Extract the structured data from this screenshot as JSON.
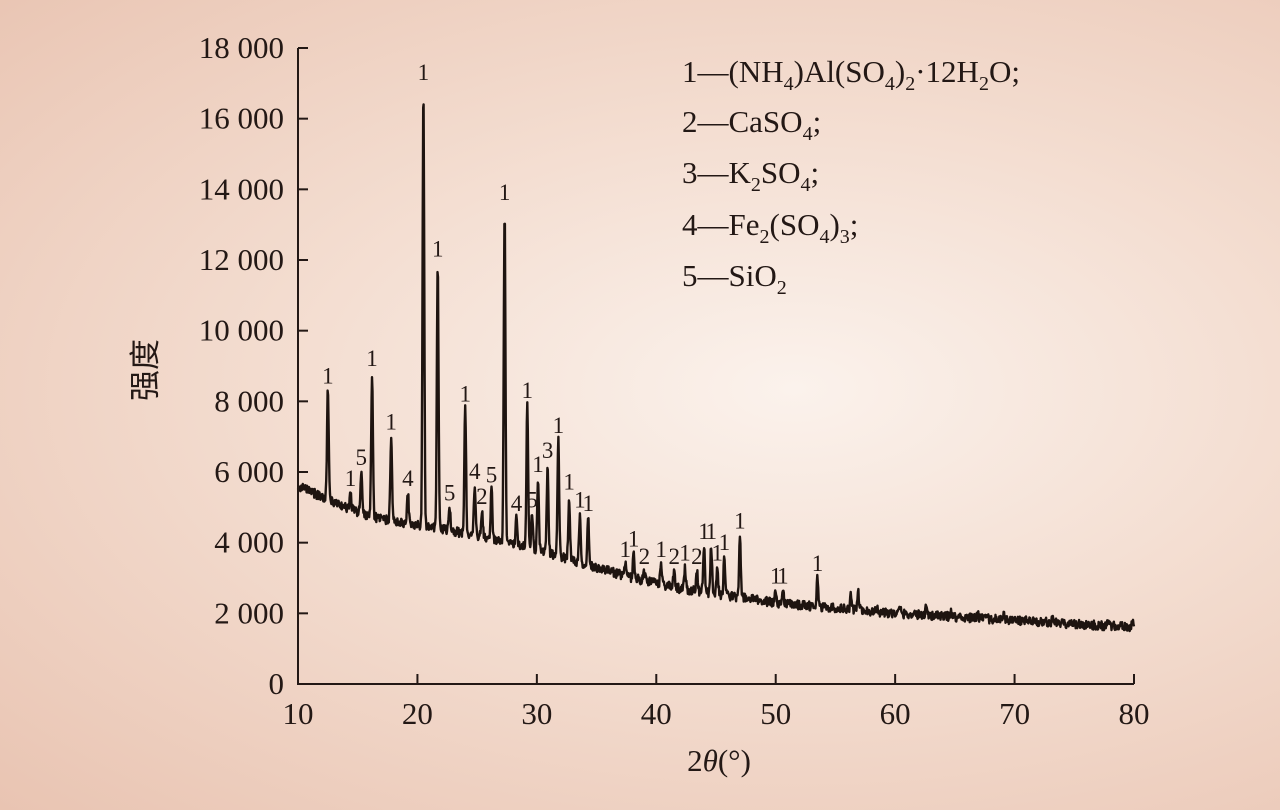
{
  "chart_data": {
    "type": "line",
    "title": "",
    "xlabel": "2θ(°)",
    "xlabel_parts": {
      "var": "2",
      "theta": "θ",
      "unit": "(°)"
    },
    "ylabel": "强度",
    "xlim": [
      10,
      80
    ],
    "ylim": [
      0,
      18000
    ],
    "grid": false,
    "x_ticks": [
      10,
      20,
      30,
      40,
      50,
      60,
      70,
      80
    ],
    "x_tick_labels": [
      "10",
      "20",
      "30",
      "40",
      "50",
      "60",
      "70",
      "80"
    ],
    "y_ticks": [
      0,
      2000,
      4000,
      6000,
      8000,
      10000,
      12000,
      14000,
      16000,
      18000
    ],
    "y_tick_labels": [
      "0",
      "2 000",
      "4 000",
      "6 000",
      "8 000",
      "10 000",
      "12 000",
      "14 000",
      "16 000",
      "18 000"
    ],
    "legend_position": "top-right",
    "legend": [
      {
        "id": "1",
        "text": "1—(NH4)Al(SO4)2·12H2O;"
      },
      {
        "id": "2",
        "text": "2—CaSO4;"
      },
      {
        "id": "3",
        "text": "3—K2SO4;"
      },
      {
        "id": "4",
        "text": "4—Fe2(SO4)3;"
      },
      {
        "id": "5",
        "text": "5—SiO2"
      }
    ],
    "background_points": [
      [
        10,
        5600
      ],
      [
        12,
        5300
      ],
      [
        14,
        5000
      ],
      [
        16,
        4750
      ],
      [
        18,
        4600
      ],
      [
        20,
        4500
      ],
      [
        22,
        4400
      ],
      [
        24,
        4250
      ],
      [
        26,
        4100
      ],
      [
        28,
        3950
      ],
      [
        30,
        3800
      ],
      [
        32,
        3600
      ],
      [
        34,
        3400
      ],
      [
        36,
        3200
      ],
      [
        38,
        3000
      ],
      [
        40,
        2850
      ],
      [
        42,
        2700
      ],
      [
        44,
        2600
      ],
      [
        46,
        2500
      ],
      [
        48,
        2400
      ],
      [
        50,
        2300
      ],
      [
        55,
        2150
      ],
      [
        60,
        2000
      ],
      [
        65,
        1900
      ],
      [
        70,
        1800
      ],
      [
        75,
        1700
      ],
      [
        80,
        1600
      ]
    ],
    "peaks": [
      {
        "x": 12.5,
        "y": 8300,
        "label": "1"
      },
      {
        "x": 14.4,
        "y": 5400,
        "label": "1"
      },
      {
        "x": 15.3,
        "y": 6000,
        "label": "5"
      },
      {
        "x": 16.2,
        "y": 8800,
        "label": "1"
      },
      {
        "x": 17.8,
        "y": 7000,
        "label": "1"
      },
      {
        "x": 19.2,
        "y": 5400,
        "label": "4"
      },
      {
        "x": 20.5,
        "y": 16900,
        "label": "1"
      },
      {
        "x": 21.7,
        "y": 11900,
        "label": "1"
      },
      {
        "x": 22.7,
        "y": 5000,
        "label": "5"
      },
      {
        "x": 24.0,
        "y": 7800,
        "label": "1"
      },
      {
        "x": 24.8,
        "y": 5600,
        "label": "4"
      },
      {
        "x": 25.4,
        "y": 4900,
        "label": "2"
      },
      {
        "x": 26.2,
        "y": 5500,
        "label": "5"
      },
      {
        "x": 27.3,
        "y": 13500,
        "label": "1"
      },
      {
        "x": 28.3,
        "y": 4700,
        "label": "4"
      },
      {
        "x": 29.2,
        "y": 7900,
        "label": "1"
      },
      {
        "x": 29.6,
        "y": 4800,
        "label": "5"
      },
      {
        "x": 30.1,
        "y": 5800,
        "label": "1"
      },
      {
        "x": 30.9,
        "y": 6200,
        "label": "3"
      },
      {
        "x": 31.8,
        "y": 6900,
        "label": "1"
      },
      {
        "x": 32.7,
        "y": 5300,
        "label": "1"
      },
      {
        "x": 33.6,
        "y": 4800,
        "label": "1"
      },
      {
        "x": 34.3,
        "y": 4700,
        "label": "1"
      },
      {
        "x": 37.4,
        "y": 3400,
        "label": "1"
      },
      {
        "x": 38.1,
        "y": 3700,
        "label": "1"
      },
      {
        "x": 39.0,
        "y": 3200,
        "label": "2"
      },
      {
        "x": 40.4,
        "y": 3400,
        "label": "1"
      },
      {
        "x": 41.5,
        "y": 3200,
        "label": "2"
      },
      {
        "x": 42.4,
        "y": 3300,
        "label": "1"
      },
      {
        "x": 43.4,
        "y": 3200,
        "label": "2"
      },
      {
        "x": 44.0,
        "y": 3900,
        "label": "1"
      },
      {
        "x": 44.6,
        "y": 3900,
        "label": "1"
      },
      {
        "x": 45.1,
        "y": 3300,
        "label": "1"
      },
      {
        "x": 45.7,
        "y": 3600,
        "label": "1"
      },
      {
        "x": 47.0,
        "y": 4200,
        "label": "1"
      },
      {
        "x": 50.0,
        "y": 2650,
        "label": "1"
      },
      {
        "x": 50.6,
        "y": 2650,
        "label": "1"
      },
      {
        "x": 53.5,
        "y": 3000,
        "label": "1"
      }
    ],
    "minor_peaks": [
      {
        "x": 56.3,
        "y": 2500
      },
      {
        "x": 56.9,
        "y": 2600
      },
      {
        "x": 58.5,
        "y": 2200
      },
      {
        "x": 60.4,
        "y": 2150
      },
      {
        "x": 62.6,
        "y": 2250
      },
      {
        "x": 64.7,
        "y": 2100
      },
      {
        "x": 66.9,
        "y": 2000
      },
      {
        "x": 69.1,
        "y": 1950
      },
      {
        "x": 73.2,
        "y": 1850
      },
      {
        "x": 77.8,
        "y": 1750
      },
      {
        "x": 79.9,
        "y": 1850
      }
    ]
  }
}
